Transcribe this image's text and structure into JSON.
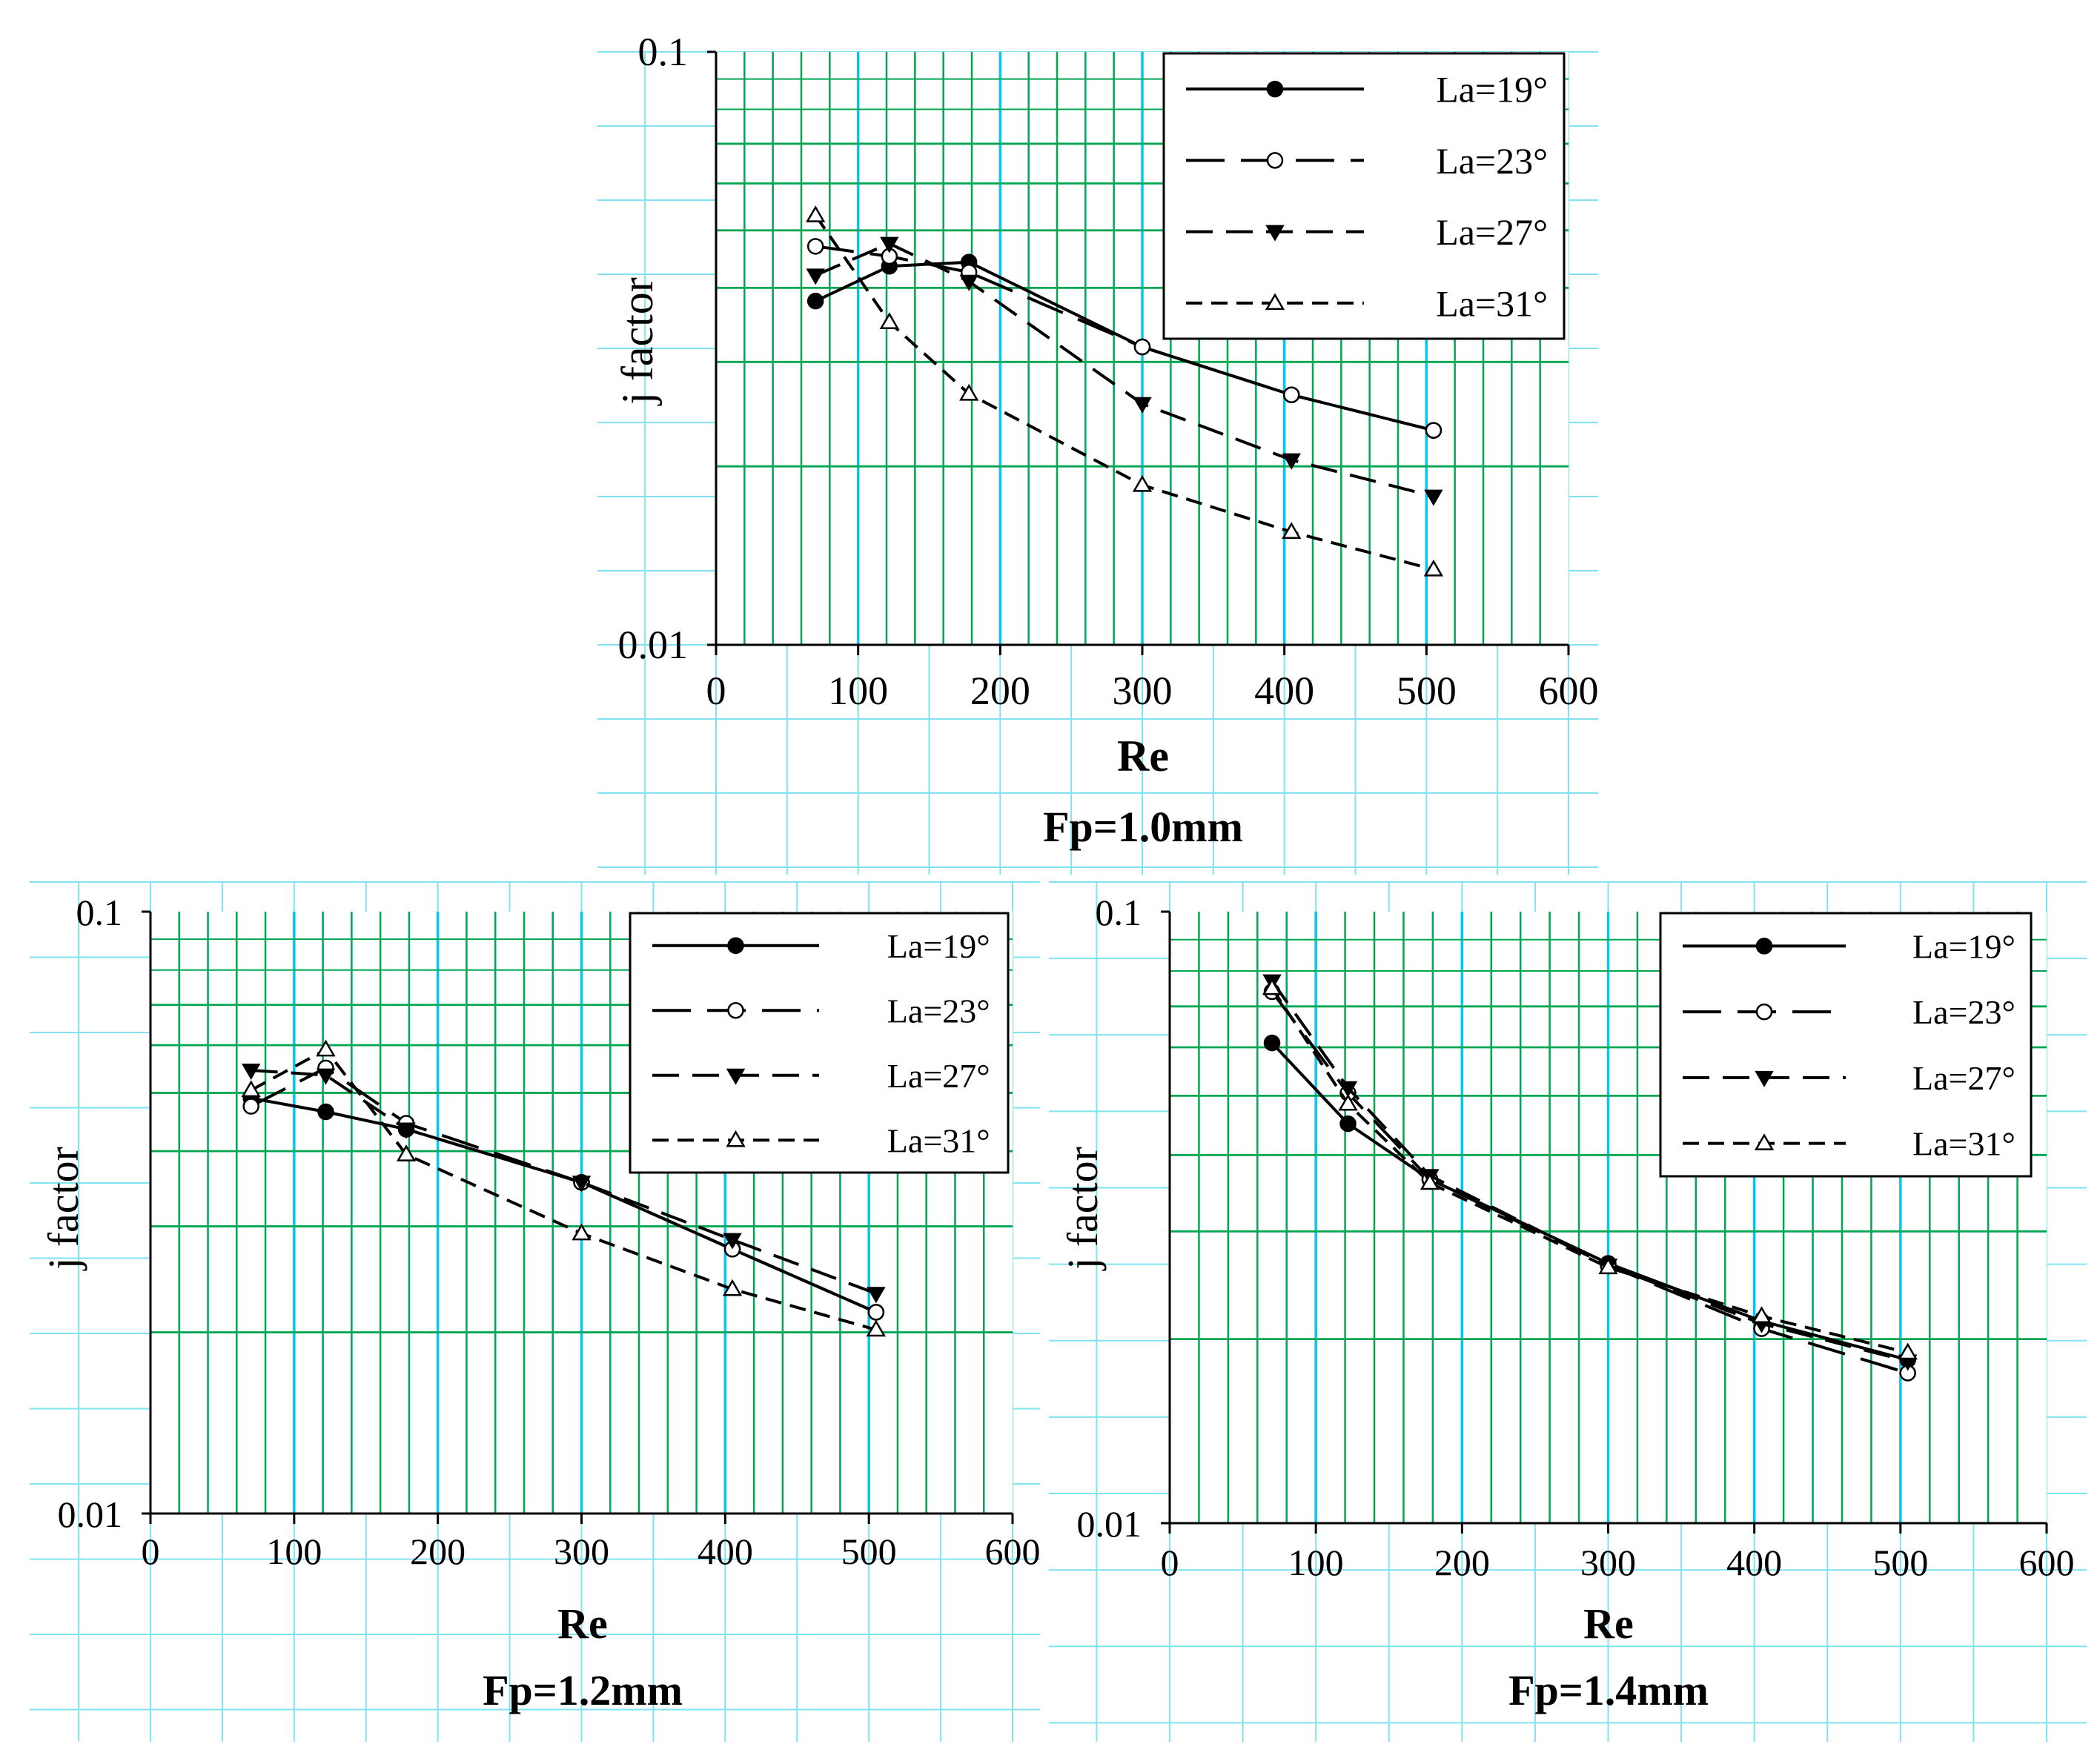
{
  "colors": {
    "grid_major": "#00a651",
    "grid_minor": "#00a651",
    "grid_light": "#7fe3f0",
    "grid_accent": "#00c8f0",
    "series_line": "#000000"
  },
  "chart_data": [
    {
      "type": "line",
      "title": "Fp=1.0mm",
      "xlabel": "Re",
      "ylabel": "j factor",
      "xlim": [
        0,
        600
      ],
      "ylim": [
        0.01,
        0.1
      ],
      "yscale": "log",
      "xticks": [
        0,
        100,
        200,
        300,
        400,
        500,
        600
      ],
      "xtick_labels": [
        "0",
        "100",
        "200",
        "300",
        "400",
        "500",
        "600"
      ],
      "ytick_labels": [
        "0.01",
        "0.1"
      ],
      "legend_position": "top-right",
      "series": [
        {
          "name": "La=19°",
          "marker": "filled-circle",
          "dash": "solid",
          "x": [
            70,
            122,
            178,
            300,
            405,
            505
          ],
          "y": [
            0.038,
            0.0435,
            0.0442,
            0.0318,
            0.0264,
            0.023
          ]
        },
        {
          "name": "La=23°",
          "marker": "open-circle",
          "dash": "long-dash",
          "x": [
            70,
            122,
            178,
            300,
            405,
            505
          ],
          "y": [
            0.047,
            0.0452,
            0.0425,
            0.0318,
            0.0264,
            0.023
          ]
        },
        {
          "name": "La=27°",
          "marker": "filled-triangle-down",
          "dash": "medium-dash",
          "x": [
            70,
            122,
            178,
            300,
            405,
            505
          ],
          "y": [
            0.042,
            0.0475,
            0.041,
            0.0255,
            0.0205,
            0.0178
          ]
        },
        {
          "name": "La=31°",
          "marker": "open-triangle-up",
          "dash": "short-dash",
          "x": [
            70,
            122,
            178,
            300,
            405,
            505
          ],
          "y": [
            0.053,
            0.035,
            0.0265,
            0.0186,
            0.0155,
            0.0134
          ]
        }
      ]
    },
    {
      "type": "line",
      "title": "Fp=1.2mm",
      "xlabel": "Re",
      "ylabel": "j factor",
      "xlim": [
        0,
        600
      ],
      "ylim": [
        0.01,
        0.1
      ],
      "yscale": "log",
      "xticks": [
        0,
        100,
        200,
        300,
        400,
        500,
        600
      ],
      "xtick_labels": [
        "0",
        "100",
        "200",
        "300",
        "400",
        "500",
        "600"
      ],
      "ytick_labels": [
        "0.01",
        "0.1"
      ],
      "legend_position": "top-right",
      "series": [
        {
          "name": "La=19°",
          "marker": "filled-circle",
          "dash": "solid",
          "x": [
            70,
            122,
            178,
            300,
            405,
            505
          ],
          "y": [
            0.049,
            0.0465,
            0.0435,
            0.0355,
            0.0275,
            0.0216
          ]
        },
        {
          "name": "La=23°",
          "marker": "open-circle",
          "dash": "long-dash",
          "x": [
            70,
            122,
            178,
            300,
            405,
            505
          ],
          "y": [
            0.0475,
            0.055,
            0.0445,
            0.0355,
            0.0275,
            0.0216
          ]
        },
        {
          "name": "La=27°",
          "marker": "filled-triangle-down",
          "dash": "medium-dash",
          "x": [
            70,
            122,
            178,
            300,
            405,
            505
          ],
          "y": [
            0.0545,
            0.0535,
            0.0435,
            0.0355,
            0.0285,
            0.0232
          ]
        },
        {
          "name": "La=31°",
          "marker": "open-triangle-up",
          "dash": "short-dash",
          "x": [
            70,
            122,
            178,
            300,
            405,
            505
          ],
          "y": [
            0.0505,
            0.059,
            0.0395,
            0.0292,
            0.0236,
            0.0202
          ]
        }
      ]
    },
    {
      "type": "line",
      "title": "Fp=1.4mm",
      "xlabel": "Re",
      "ylabel": "j factor",
      "xlim": [
        0,
        600
      ],
      "ylim": [
        0.01,
        0.1
      ],
      "yscale": "log",
      "xticks": [
        0,
        100,
        200,
        300,
        400,
        500,
        600
      ],
      "xtick_labels": [
        "0",
        "100",
        "200",
        "300",
        "400",
        "500",
        "600"
      ],
      "ytick_labels": [
        "0.01",
        "0.1"
      ],
      "legend_position": "top-right",
      "series": [
        {
          "name": "La=19°",
          "marker": "filled-circle",
          "dash": "solid",
          "x": [
            70,
            122,
            178,
            300,
            405,
            505
          ],
          "y": [
            0.061,
            0.045,
            0.0365,
            0.0266,
            0.0214,
            0.0185
          ]
        },
        {
          "name": "La=23°",
          "marker": "open-circle",
          "dash": "long-dash",
          "x": [
            70,
            122,
            178,
            300,
            405,
            505
          ],
          "y": [
            0.074,
            0.0505,
            0.0365,
            0.0264,
            0.0208,
            0.0176
          ]
        },
        {
          "name": "La=27°",
          "marker": "filled-triangle-down",
          "dash": "medium-dash",
          "x": [
            70,
            122,
            178,
            300,
            405,
            505
          ],
          "y": [
            0.077,
            0.0515,
            0.037,
            0.0264,
            0.0212,
            0.0184
          ]
        },
        {
          "name": "La=31°",
          "marker": "open-triangle-up",
          "dash": "short-dash",
          "x": [
            70,
            122,
            178,
            300,
            405,
            505
          ],
          "y": [
            0.075,
            0.0485,
            0.036,
            0.0262,
            0.0218,
            0.019
          ]
        }
      ]
    }
  ]
}
